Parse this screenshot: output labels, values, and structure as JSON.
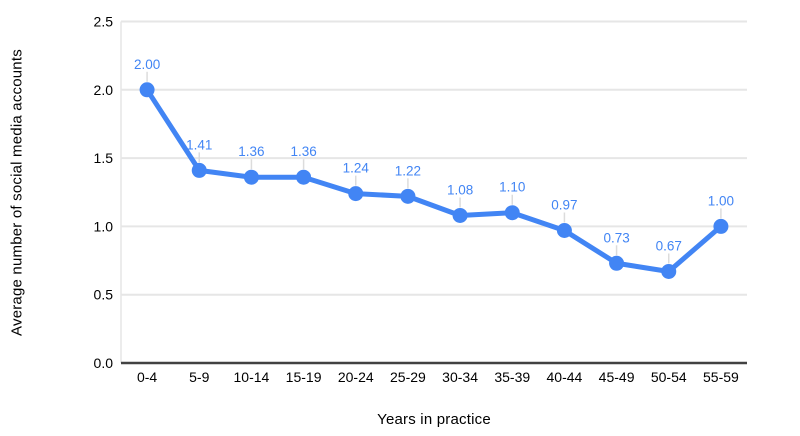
{
  "chart_data": {
    "type": "line",
    "categories": [
      "0-4",
      "5-9",
      "10-14",
      "15-19",
      "20-24",
      "25-29",
      "30-34",
      "35-39",
      "40-44",
      "45-49",
      "50-54",
      "55-59"
    ],
    "values": [
      2.0,
      1.41,
      1.36,
      1.36,
      1.24,
      1.22,
      1.08,
      1.1,
      0.97,
      0.73,
      0.67,
      1.0
    ],
    "point_labels": [
      "2.00",
      "1.41",
      "1.36",
      "1.36",
      "1.24",
      "1.22",
      "1.08",
      "1.10",
      "0.97",
      "0.73",
      "0.67",
      "1.00"
    ],
    "title": "",
    "xlabel": "Years in practice",
    "ylabel": "Average number of social media accounts",
    "ylim": [
      0,
      2.5
    ],
    "ytick_labels": [
      "0.0",
      "0.5",
      "1.0",
      "1.5",
      "2.0",
      "2.5"
    ],
    "grid": true,
    "legend": "none",
    "colors": {
      "series": "#4285f4",
      "data_label": "#4285f4",
      "gridline": "#e6e6e6",
      "axis_line": "#424242",
      "tick_text": "#000000",
      "leader_line": "#dcdcdc",
      "plot_border": "#e6e6e6"
    }
  }
}
